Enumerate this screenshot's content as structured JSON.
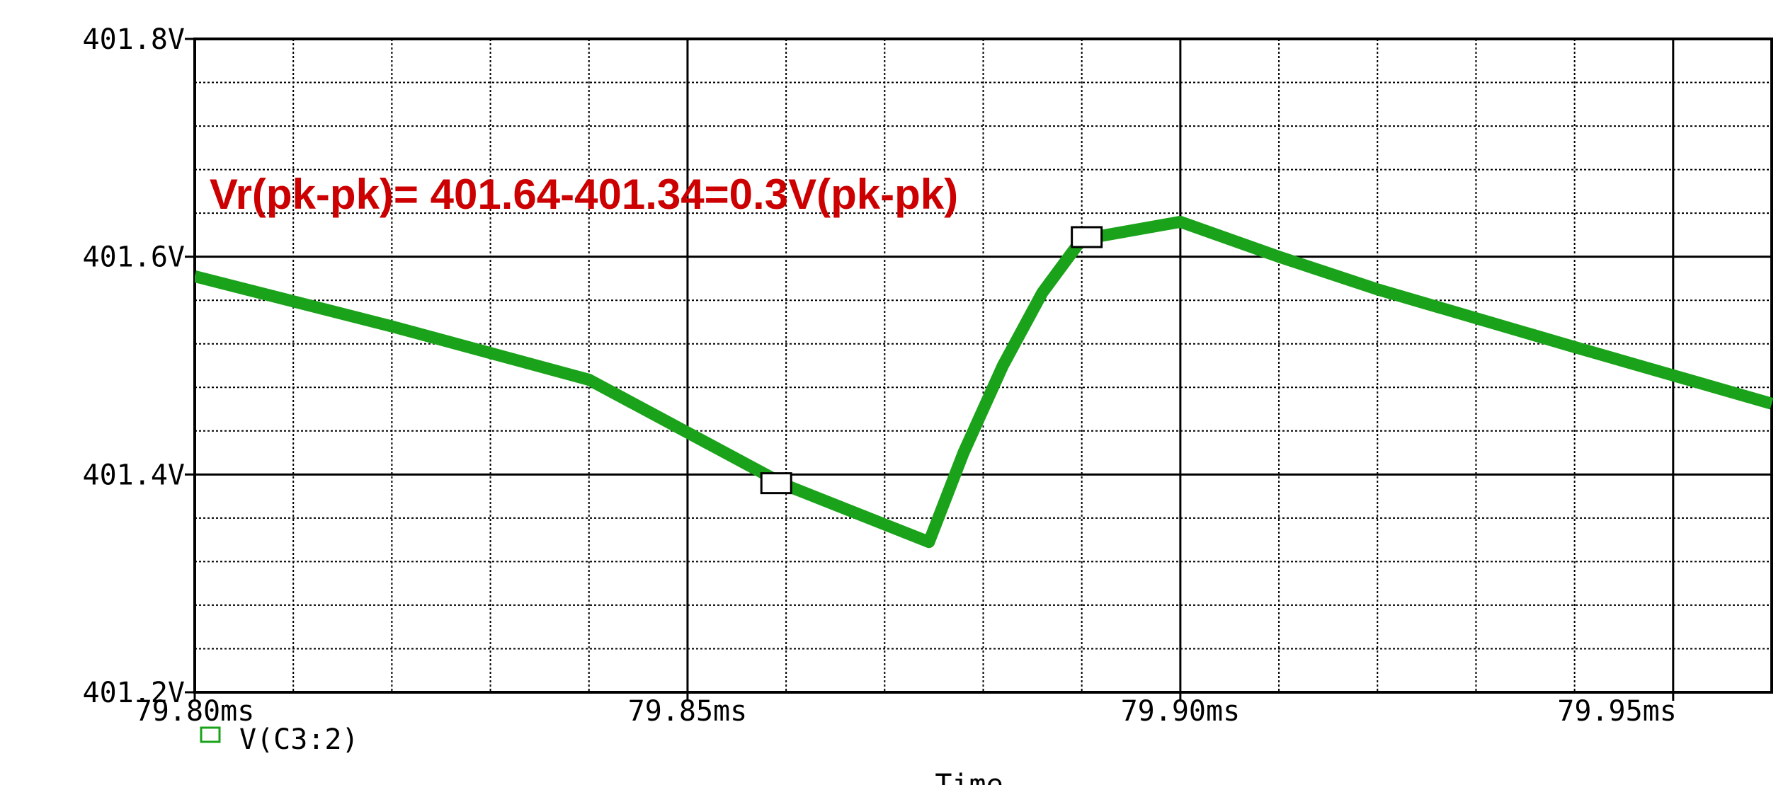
{
  "chart_data": {
    "type": "line",
    "xlabel": "Time",
    "ylabel": "",
    "xlim": [
      79.8,
      79.96
    ],
    "ylim": [
      401.2,
      401.8
    ],
    "x_ticks": [
      79.8,
      79.85,
      79.9,
      79.95
    ],
    "x_tick_labels": [
      "79.80ms",
      "79.85ms",
      "79.90ms",
      "79.95ms"
    ],
    "y_ticks": [
      401.2,
      401.4,
      401.6,
      401.8
    ],
    "y_tick_labels": [
      "401.2V",
      "401.4V",
      "401.6V",
      "401.8V"
    ],
    "grid": true,
    "legend_position": "bottom-left",
    "series": [
      {
        "name": "V(C3:2)",
        "color": "#1aa31a",
        "x": [
          79.8,
          79.82,
          79.84,
          79.86,
          79.8745,
          79.878,
          79.882,
          79.886,
          79.89,
          79.9,
          79.91,
          79.92,
          79.94,
          79.96
        ],
        "y": [
          401.582,
          401.536,
          401.487,
          401.39,
          401.338,
          401.42,
          401.5,
          401.567,
          401.616,
          401.632,
          401.6,
          401.57,
          401.517,
          401.465
        ]
      }
    ],
    "markers": [
      {
        "x": 79.859,
        "y": 401.392
      },
      {
        "x": 79.8905,
        "y": 401.618
      }
    ],
    "annotations": [
      {
        "text": "Vr(pk-pk)= 401.64-401.34=0.3V(pk-pk)",
        "color": "#cc0000",
        "x": 79.8015,
        "y": 401.657
      }
    ]
  }
}
